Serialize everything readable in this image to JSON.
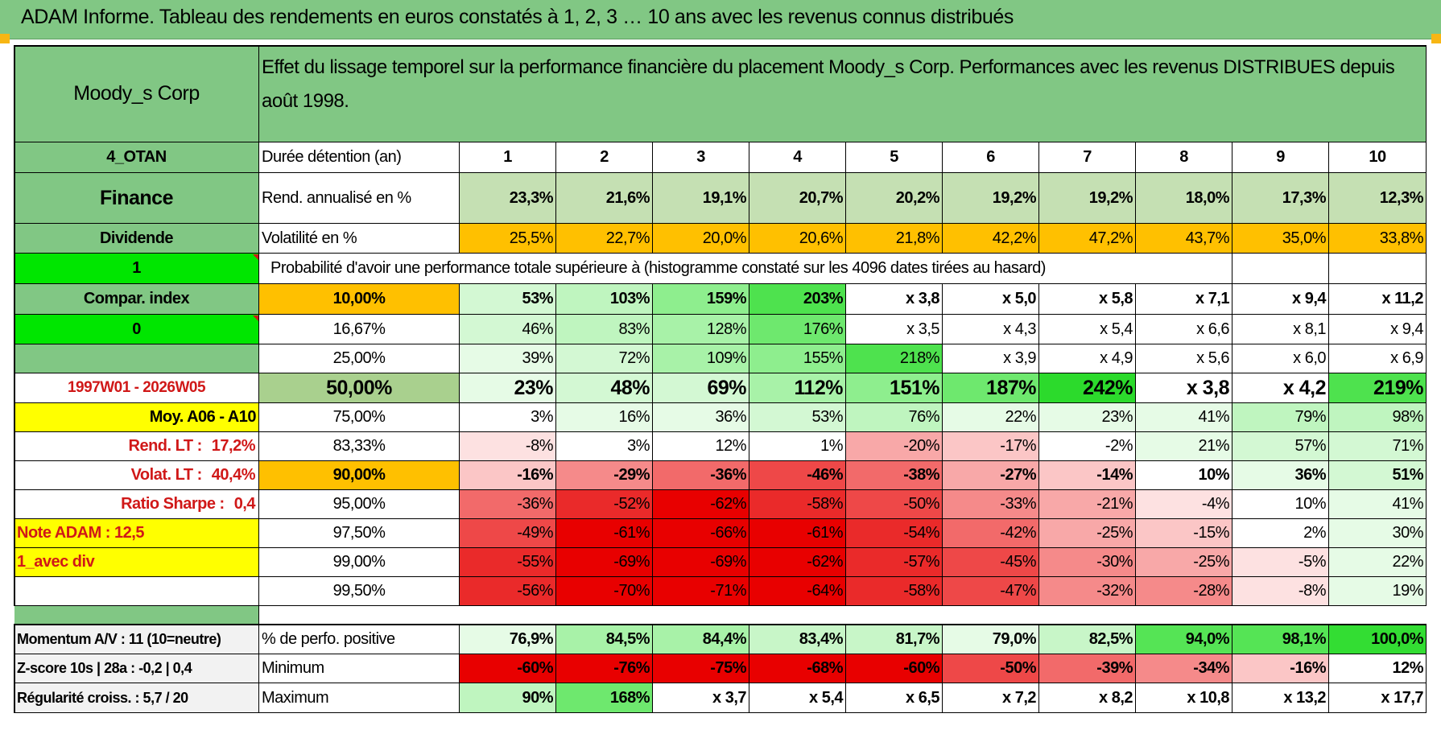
{
  "header": {
    "title": "ADAM Informe. Tableau des rendements en euros constatés à 1, 2, 3 … 10 ans avec les revenus connus distribués"
  },
  "left_panel": {
    "company": "Moody_s Corp",
    "code": "4_OTAN",
    "sector": "Finance",
    "type": "Dividende",
    "flag_one": "1",
    "compar_label": "Compar. index",
    "flag_zero": "0",
    "period": "1997W01 - 2026W05",
    "moy": "Moy. A06 - A10",
    "rend_lt_label": "Rend. LT :",
    "rend_lt_value": "17,2%",
    "volat_lt_label": "Volat. LT :",
    "volat_lt_value": "40,4%",
    "sharpe_label": "Ratio Sharpe :",
    "sharpe_value": "0,4",
    "note": "Note ADAM : 12,5",
    "avec_div": "1_avec div",
    "momentum": "Momentum A/V : 11 (10=neutre)",
    "zscore": "Z-score 10s | 28a : -0,2 | 0,4",
    "regularite": "Régularité croiss. : 5,7 / 20"
  },
  "description": "Effet du lissage temporel sur la performance financière du placement Moody_s Corp. Performances avec les revenus DISTRIBUES depuis août 1998.",
  "labels": {
    "duree": "Durée détention (an)",
    "rend": "Rend. annualisé en %",
    "vol": "Volatilité en %",
    "prob": "Probabilité d'avoir une performance totale supérieure à (histogramme constaté sur les 4096 dates tirées au hasard)",
    "pos": "% de perfo. positive",
    "min": "Minimum",
    "max": "Maximum"
  },
  "years": [
    "1",
    "2",
    "3",
    "4",
    "5",
    "6",
    "7",
    "8",
    "9",
    "10"
  ],
  "rend": [
    "23,3%",
    "21,6%",
    "19,1%",
    "20,7%",
    "20,2%",
    "19,2%",
    "19,2%",
    "18,0%",
    "17,3%",
    "12,3%"
  ],
  "vol": [
    "25,5%",
    "22,7%",
    "20,0%",
    "20,6%",
    "21,8%",
    "42,2%",
    "47,2%",
    "43,7%",
    "35,0%",
    "33,8%"
  ],
  "percentiles": [
    "10,00%",
    "16,67%",
    "25,00%",
    "50,00%",
    "75,00%",
    "83,33%",
    "90,00%",
    "95,00%",
    "97,50%",
    "99,00%",
    "99,50%"
  ],
  "prob_rows": [
    [
      "53%",
      "103%",
      "159%",
      "203%",
      "x 3,8",
      "x 5,0",
      "x 5,8",
      "x 7,1",
      "x 9,4",
      "x 11,2"
    ],
    [
      "46%",
      "83%",
      "128%",
      "176%",
      "x 3,5",
      "x 4,3",
      "x 5,4",
      "x 6,6",
      "x 8,1",
      "x 9,4"
    ],
    [
      "39%",
      "72%",
      "109%",
      "155%",
      "218%",
      "x 3,9",
      "x 4,9",
      "x 5,6",
      "x 6,0",
      "x 6,9"
    ],
    [
      "23%",
      "48%",
      "69%",
      "112%",
      "151%",
      "187%",
      "242%",
      "x 3,8",
      "x 4,2",
      "219%"
    ],
    [
      "3%",
      "16%",
      "36%",
      "53%",
      "76%",
      "22%",
      "23%",
      "41%",
      "79%",
      "98%"
    ],
    [
      "-8%",
      "3%",
      "12%",
      "1%",
      "-20%",
      "-17%",
      "-2%",
      "21%",
      "57%",
      "71%"
    ],
    [
      "-16%",
      "-29%",
      "-36%",
      "-46%",
      "-38%",
      "-27%",
      "-14%",
      "10%",
      "36%",
      "51%"
    ],
    [
      "-36%",
      "-52%",
      "-62%",
      "-58%",
      "-50%",
      "-33%",
      "-21%",
      "-4%",
      "10%",
      "41%"
    ],
    [
      "-49%",
      "-61%",
      "-66%",
      "-61%",
      "-54%",
      "-42%",
      "-25%",
      "-15%",
      "2%",
      "30%"
    ],
    [
      "-55%",
      "-69%",
      "-69%",
      "-62%",
      "-57%",
      "-45%",
      "-30%",
      "-25%",
      "-5%",
      "22%"
    ],
    [
      "-56%",
      "-70%",
      "-71%",
      "-64%",
      "-58%",
      "-47%",
      "-32%",
      "-28%",
      "-8%",
      "19%"
    ]
  ],
  "pos": [
    "76,9%",
    "84,5%",
    "84,4%",
    "83,4%",
    "81,7%",
    "79,0%",
    "82,5%",
    "94,0%",
    "98,1%",
    "100,0%"
  ],
  "min": [
    "-60%",
    "-76%",
    "-75%",
    "-68%",
    "-60%",
    "-50%",
    "-39%",
    "-34%",
    "-16%",
    "12%"
  ],
  "max": [
    "90%",
    "168%",
    "x 3,7",
    "x 5,4",
    "x 6,5",
    "x 7,2",
    "x 8,2",
    "x 10,8",
    "x 13,2",
    "x 17,7"
  ],
  "colors": {
    "header_green": "#81c784",
    "pale_green": "#c5e0b3",
    "orange": "#ffc000",
    "yellow": "#ffff00",
    "bright_green": "#00e600",
    "red_text": "#d01818"
  }
}
